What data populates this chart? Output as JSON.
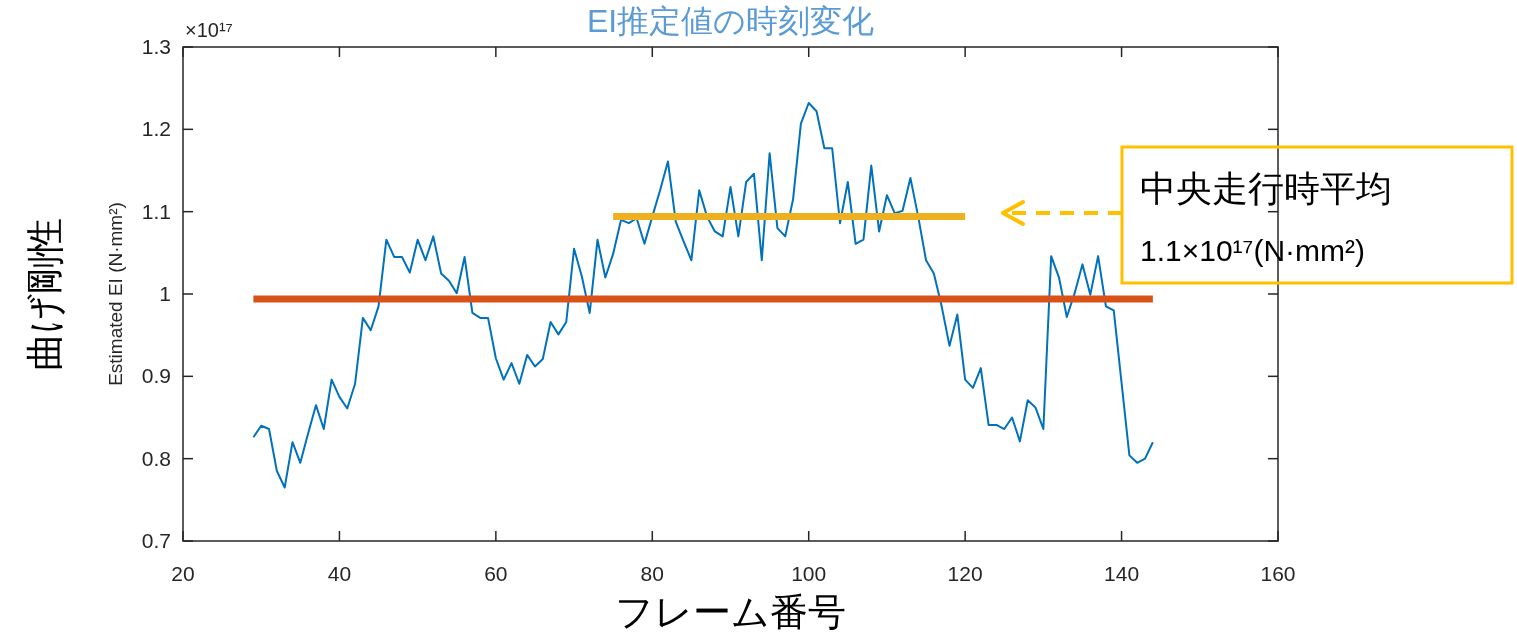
{
  "chart_data": {
    "type": "line",
    "title": "EI推定値の時刻変化",
    "xlabel": "フレーム番号",
    "ylabel": "Estimated EI (N·mm²)",
    "xlim": [
      20,
      160
    ],
    "xticks": [
      20,
      40,
      60,
      80,
      100,
      120,
      140,
      160
    ],
    "ylim": [
      0.7,
      1.3
    ],
    "yticks": [
      0.7,
      0.8,
      0.9,
      1,
      1.1,
      1.2,
      1.3
    ],
    "series": [
      {
        "color": "#0072bd",
        "x": [
          29,
          30,
          31,
          32,
          33,
          34,
          35,
          36,
          37,
          38,
          39,
          40,
          41,
          42,
          43,
          44,
          45,
          46,
          47,
          48,
          49,
          50,
          51,
          52,
          53,
          54,
          55,
          56,
          57,
          58,
          59,
          60,
          61,
          62,
          63,
          64,
          65,
          66,
          67,
          68,
          69,
          70,
          71,
          72,
          73,
          74,
          75,
          76,
          77,
          78,
          79,
          80,
          81,
          82,
          83,
          84,
          85,
          86,
          87,
          88,
          89,
          90,
          91,
          92,
          93,
          94,
          95,
          96,
          97,
          98,
          99,
          100,
          101,
          102,
          103,
          104,
          105,
          106,
          107,
          108,
          109,
          110,
          111,
          112,
          113,
          114,
          115,
          116,
          117,
          118,
          119,
          120,
          121,
          122,
          123,
          124,
          125,
          126,
          127,
          128,
          129,
          130,
          131,
          132,
          133,
          134,
          135,
          136,
          137,
          138,
          139,
          140,
          141,
          142,
          143,
          144
        ],
        "values": [
          0.826,
          0.84,
          0.836,
          0.785,
          0.765,
          0.82,
          0.795,
          0.831,
          0.865,
          0.836,
          0.896,
          0.875,
          0.861,
          0.891,
          0.971,
          0.956,
          0.985,
          1.066,
          1.045,
          1.045,
          1.026,
          1.066,
          1.041,
          1.07,
          1.025,
          1.016,
          1.001,
          1.045,
          0.977,
          0.971,
          0.971,
          0.922,
          0.896,
          0.916,
          0.891,
          0.926,
          0.912,
          0.921,
          0.966,
          0.951,
          0.966,
          1.055,
          1.021,
          0.977,
          1.066,
          1.02,
          1.049,
          1.09,
          1.086,
          1.092,
          1.061,
          1.094,
          1.126,
          1.161,
          1.088,
          1.064,
          1.041,
          1.126,
          1.094,
          1.076,
          1.07,
          1.13,
          1.07,
          1.136,
          1.146,
          1.041,
          1.171,
          1.08,
          1.07,
          1.115,
          1.207,
          1.232,
          1.222,
          1.177,
          1.177,
          1.086,
          1.136,
          1.061,
          1.066,
          1.156,
          1.076,
          1.12,
          1.098,
          1.101,
          1.141,
          1.094,
          1.041,
          1.025,
          0.985,
          0.937,
          0.975,
          0.896,
          0.886,
          0.91,
          0.841,
          0.841,
          0.836,
          0.85,
          0.821,
          0.871,
          0.862,
          0.836,
          1.046,
          1.02,
          0.972,
          1.001,
          1.036,
          0.999,
          1.046,
          0.985,
          0.98,
          0.892,
          0.804,
          0.795,
          0.8,
          0.82
        ]
      },
      {
        "color": "#d95319",
        "x": [
          29,
          144
        ],
        "values": [
          0.994,
          0.994
        ]
      },
      {
        "color": "#edb120",
        "x": [
          75,
          120
        ],
        "values": [
          1.094,
          1.094
        ]
      }
    ],
    "annotations": [
      "×10¹⁷",
      "曲げ剛性",
      "中央走行時平均\n1.1×10¹⁷(N·mm²)"
    ]
  }
}
